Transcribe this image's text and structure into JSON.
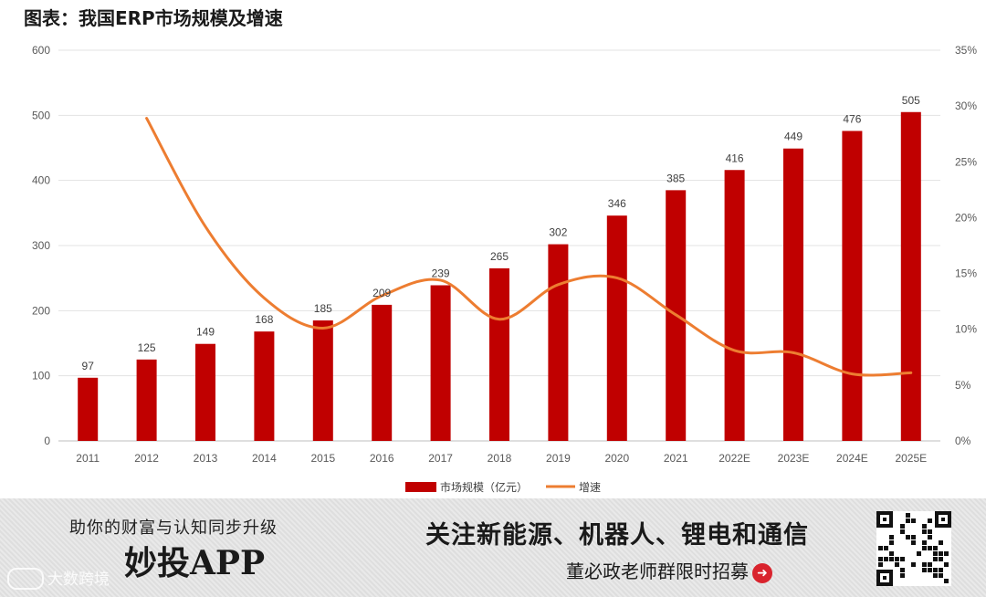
{
  "title": "图表：我国ERP市场规模及增速",
  "chart_data": {
    "type": "bar",
    "title": "图表：我国ERP市场规模及增速",
    "categories": [
      "2011",
      "2012",
      "2013",
      "2014",
      "2015",
      "2016",
      "2017",
      "2018",
      "2019",
      "2020",
      "2021",
      "2022E",
      "2023E",
      "2024E",
      "2025E"
    ],
    "series": [
      {
        "name": "市场规模（亿元）",
        "type": "bar",
        "axis": "left",
        "color": "#c00000",
        "values": [
          97,
          125,
          149,
          168,
          185,
          209,
          239,
          265,
          302,
          346,
          385,
          416,
          449,
          476,
          505
        ]
      },
      {
        "name": "增速",
        "type": "line",
        "axis": "right",
        "color": "#ed7d31",
        "values": [
          null,
          28.9,
          19.2,
          12.8,
          10.1,
          13.0,
          14.4,
          10.9,
          14.0,
          14.6,
          11.3,
          8.1,
          7.9,
          6.0,
          6.1
        ]
      }
    ],
    "ylim": [
      0,
      600
    ],
    "y_ticks": [
      "0",
      "100",
      "200",
      "300",
      "400",
      "500",
      "600"
    ],
    "y2lim": [
      0,
      35
    ],
    "y2_ticks": [
      "0%",
      "5%",
      "10%",
      "15%",
      "20%",
      "25%",
      "30%",
      "35%"
    ],
    "legend_position": "bottom",
    "grid": true
  },
  "banner": {
    "tagline": "助你的财富与认知同步升级",
    "app_name": "妙投APP",
    "headline": "关注新能源、机器人、锂电和通信",
    "subline": "董必政老师群限时招募",
    "arrow": "➜",
    "watermark": "大数跨境"
  }
}
